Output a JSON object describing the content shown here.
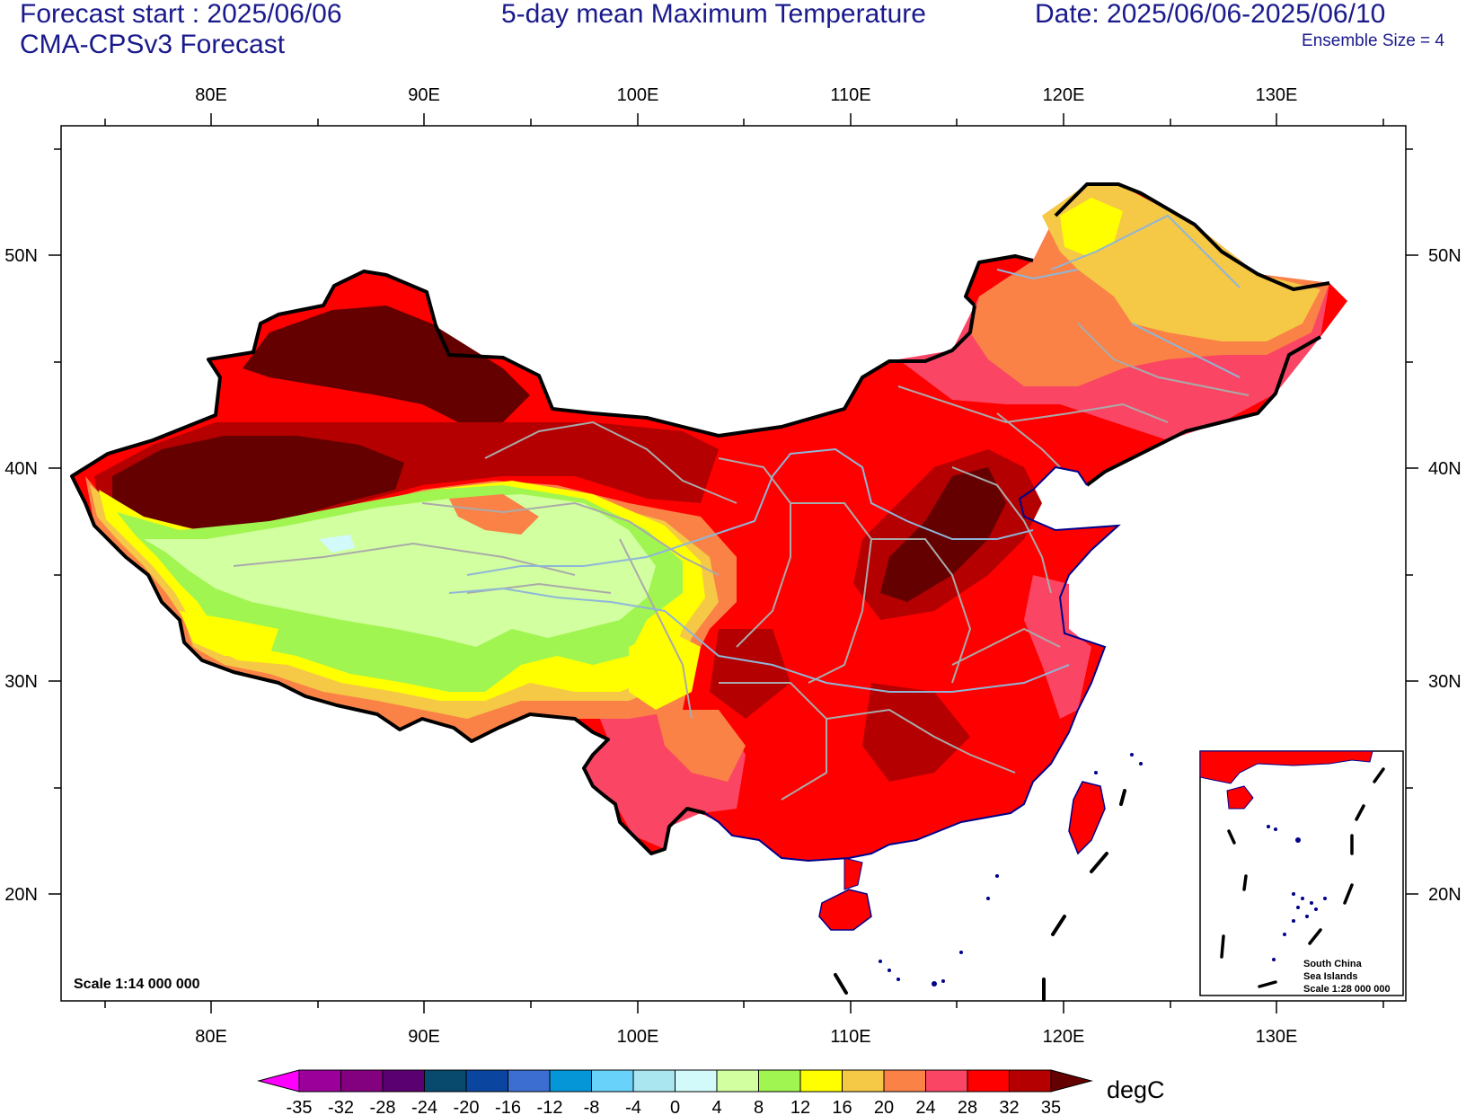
{
  "header": {
    "forecast_start": "Forecast start : 2025/06/06",
    "model": "CMA-CPSv3 Forecast",
    "title": "5-day mean Maximum Temperature",
    "date_range": "Date: 2025/06/06-2025/06/10",
    "ensemble": "Ensemble Size = 4"
  },
  "axes": {
    "lon_labels": [
      "80E",
      "90E",
      "100E",
      "110E",
      "120E",
      "130E"
    ],
    "lat_labels": [
      "20N",
      "30N",
      "40N",
      "50N"
    ]
  },
  "map": {
    "scale": "Scale 1:14 000 000",
    "inset": {
      "line1": "South China",
      "line2": "Sea Islands",
      "line3": "Scale 1:28 000 000"
    }
  },
  "colorbar": {
    "unit": "degC",
    "ticks": [
      "-35",
      "-32",
      "-28",
      "-24",
      "-20",
      "-16",
      "-12",
      "-8",
      "-4",
      "0",
      "4",
      "8",
      "12",
      "16",
      "20",
      "24",
      "28",
      "32",
      "35"
    ],
    "colors": [
      "#ff00ff",
      "#9b009b",
      "#83007f",
      "#5a0070",
      "#074a6e",
      "#0a46a0",
      "#3c6ed2",
      "#0596d7",
      "#69d2fa",
      "#aae6f0",
      "#d2fafa",
      "#d2ffa0",
      "#a0f550",
      "#ffff00",
      "#f5c846",
      "#fa8246",
      "#fa4664",
      "#ff0000",
      "#b40000",
      "#640000"
    ]
  },
  "legend": [
    {
      "range": "< -35",
      "color": "#ff00ff"
    },
    {
      "range": "28-32",
      "color": "#ff0000"
    },
    {
      "range": "> 35",
      "color": "#640000"
    }
  ]
}
